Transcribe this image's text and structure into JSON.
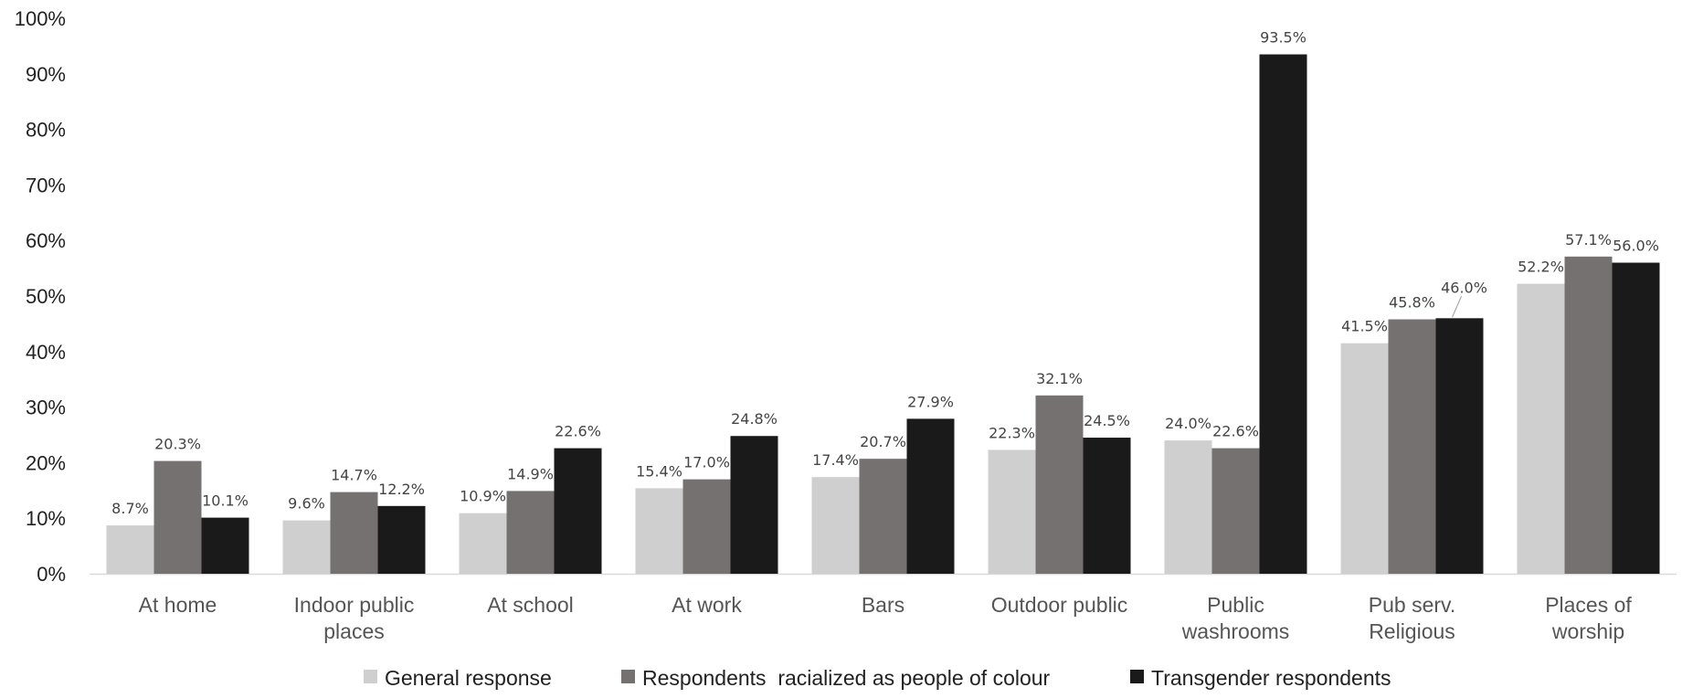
{
  "chart_data": {
    "type": "bar",
    "title": "",
    "xlabel": "",
    "ylabel": "",
    "ylim": [
      0,
      100
    ],
    "yticks": [
      0,
      10,
      20,
      30,
      40,
      50,
      60,
      70,
      80,
      90,
      100
    ],
    "ytick_labels": [
      "0%",
      "10%",
      "20%",
      "30%",
      "40%",
      "50%",
      "60%",
      "70%",
      "80%",
      "90%",
      "100%"
    ],
    "grid": false,
    "legend_position": "bottom",
    "categories": [
      [
        "At home"
      ],
      [
        "Indoor public",
        "places"
      ],
      [
        "At school"
      ],
      [
        "At work"
      ],
      [
        "Bars"
      ],
      [
        "Outdoor public"
      ],
      [
        "Public",
        "washrooms"
      ],
      [
        "Pub serv.",
        "Religious"
      ],
      [
        "Places of",
        "worship"
      ]
    ],
    "series": [
      {
        "name": "General response",
        "color": "#d0cfd0",
        "values": [
          8.7,
          9.6,
          10.9,
          15.4,
          17.4,
          22.3,
          24.0,
          41.5,
          52.2
        ],
        "labels": [
          "8.7%",
          "9.6%",
          "10.9%",
          "15.4%",
          "17.4%",
          "22.3%",
          "24.0%",
          "41.5%",
          "52.2%"
        ]
      },
      {
        "name": "Respondents  racialized as people of colour",
        "color": "#767171",
        "values": [
          20.3,
          14.7,
          14.9,
          17.0,
          20.7,
          32.1,
          22.6,
          45.8,
          57.1
        ],
        "labels": [
          "20.3%",
          "14.7%",
          "14.9%",
          "17.0%",
          "20.7%",
          "32.1%",
          "22.6%",
          "45.8%",
          "57.1%"
        ]
      },
      {
        "name": "Transgender respondents",
        "color": "#1a1a1a",
        "values": [
          10.1,
          12.2,
          22.6,
          24.8,
          27.9,
          24.5,
          93.5,
          46.0,
          56.0
        ],
        "labels": [
          "10.1%",
          "12.2%",
          "22.6%",
          "24.8%",
          "27.9%",
          "24.5%",
          "93.5%",
          "46.0%",
          "56.0%"
        ]
      }
    ]
  }
}
